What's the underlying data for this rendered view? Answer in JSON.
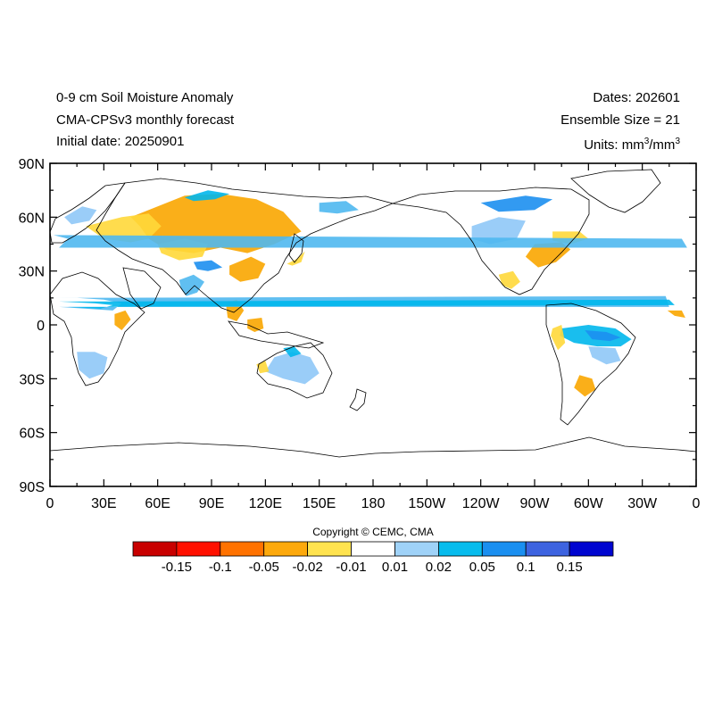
{
  "header": {
    "title_line1": "0-9 cm Soil Moisture Anomaly",
    "title_line2": "CMA-CPSv3 monthly forecast",
    "title_line3": "Initial date: 20250901",
    "dates": "Dates: 202601",
    "ensemble": "Ensemble Size = 21",
    "units_prefix": "Units: mm",
    "units_sup1": "3",
    "units_mid": "/mm",
    "units_sup2": "3"
  },
  "map": {
    "projection": "cylindrical-equidistant",
    "lon_range": [
      0,
      360
    ],
    "lat_range": [
      -90,
      90
    ],
    "lat_ticks": [
      {
        "value": 90,
        "label": "90N"
      },
      {
        "value": 60,
        "label": "60N"
      },
      {
        "value": 30,
        "label": "30N"
      },
      {
        "value": 0,
        "label": "0"
      },
      {
        "value": -30,
        "label": "30S"
      },
      {
        "value": -60,
        "label": "60S"
      },
      {
        "value": -90,
        "label": "90S"
      }
    ],
    "lon_ticks": [
      {
        "value": 0,
        "label": "0"
      },
      {
        "value": 30,
        "label": "30E"
      },
      {
        "value": 60,
        "label": "60E"
      },
      {
        "value": 90,
        "label": "90E"
      },
      {
        "value": 120,
        "label": "120E"
      },
      {
        "value": 150,
        "label": "150E"
      },
      {
        "value": 180,
        "label": "180"
      },
      {
        "value": 210,
        "label": "150W"
      },
      {
        "value": 240,
        "label": "120W"
      },
      {
        "value": 270,
        "label": "90W"
      },
      {
        "value": 300,
        "label": "60W"
      },
      {
        "value": 330,
        "label": "30W"
      },
      {
        "value": 360,
        "label": "0"
      }
    ],
    "coast_color": "#000000",
    "anomaly_regions": [
      {
        "name": "eurasia-dry",
        "color": "#f9a600",
        "lonlat": [
          [
            60,
            66
          ],
          [
            75,
            72
          ],
          [
            95,
            73
          ],
          [
            115,
            70
          ],
          [
            130,
            63
          ],
          [
            140,
            52
          ],
          [
            125,
            45
          ],
          [
            110,
            40
          ],
          [
            95,
            43
          ],
          [
            80,
            40
          ],
          [
            65,
            42
          ],
          [
            55,
            48
          ],
          [
            50,
            55
          ],
          [
            45,
            60
          ]
        ]
      },
      {
        "name": "eurasia-light-dry",
        "color": "#ffd83a",
        "lonlat": [
          [
            20,
            55
          ],
          [
            40,
            60
          ],
          [
            55,
            62
          ],
          [
            62,
            55
          ],
          [
            55,
            48
          ],
          [
            45,
            46
          ],
          [
            30,
            48
          ]
        ]
      },
      {
        "name": "central-asia-dry",
        "color": "#ffd83a",
        "lonlat": [
          [
            60,
            45
          ],
          [
            75,
            48
          ],
          [
            88,
            45
          ],
          [
            85,
            38
          ],
          [
            72,
            36
          ],
          [
            62,
            40
          ]
        ]
      },
      {
        "name": "china-dry",
        "color": "#f9a600",
        "lonlat": [
          [
            100,
            33
          ],
          [
            112,
            38
          ],
          [
            120,
            34
          ],
          [
            116,
            26
          ],
          [
            106,
            24
          ],
          [
            100,
            28
          ]
        ]
      },
      {
        "name": "india-wet",
        "color": "#4fb8f0",
        "lonlat": [
          [
            72,
            25
          ],
          [
            80,
            28
          ],
          [
            86,
            24
          ],
          [
            82,
            18
          ],
          [
            76,
            16
          ],
          [
            73,
            20
          ]
        ]
      },
      {
        "name": "tibet-wet",
        "color": "#1c8ff0",
        "lonlat": [
          [
            80,
            35
          ],
          [
            90,
            36
          ],
          [
            96,
            32
          ],
          [
            88,
            30
          ],
          [
            82,
            31
          ]
        ]
      },
      {
        "name": "se-asia-dry",
        "color": "#f9a600",
        "lonlat": [
          [
            98,
            12
          ],
          [
            104,
            14
          ],
          [
            108,
            8
          ],
          [
            104,
            2
          ],
          [
            99,
            4
          ]
        ]
      },
      {
        "name": "indonesia-dry",
        "color": "#f9a600",
        "lonlat": [
          [
            110,
            3
          ],
          [
            118,
            4
          ],
          [
            119,
            -2
          ],
          [
            114,
            -4
          ],
          [
            110,
            -2
          ]
        ]
      },
      {
        "name": "japan-dry",
        "color": "#ffd83a",
        "lonlat": [
          [
            132,
            34
          ],
          [
            138,
            37
          ],
          [
            142,
            41
          ],
          [
            140,
            35
          ],
          [
            135,
            33
          ]
        ]
      },
      {
        "name": "siberia-wet",
        "color": "#00b7ec",
        "lonlat": [
          [
            75,
            71
          ],
          [
            88,
            75
          ],
          [
            100,
            73
          ],
          [
            92,
            70
          ],
          [
            80,
            69
          ]
        ]
      },
      {
        "name": "east-siberia-wet",
        "color": "#4fb8f0",
        "lonlat": [
          [
            150,
            68
          ],
          [
            165,
            69
          ],
          [
            172,
            64
          ],
          [
            160,
            62
          ],
          [
            150,
            63
          ]
        ]
      },
      {
        "name": "sahel-wet",
        "color": "#4fb8f0",
        "lonlat": [
          [
            -17,
            16
          ],
          [
            0,
            15
          ],
          [
            15,
            15
          ],
          [
            30,
            14
          ],
          [
            40,
            12
          ],
          [
            35,
            8
          ],
          [
            20,
            9
          ],
          [
            5,
            10
          ],
          [
            -15,
            10
          ]
        ]
      },
      {
        "name": "sahel-strong-wet",
        "color": "#00b7ec",
        "lonlat": [
          [
            -15,
            14
          ],
          [
            5,
            13
          ],
          [
            25,
            12
          ],
          [
            35,
            11
          ],
          [
            28,
            9
          ],
          [
            10,
            10
          ],
          [
            -12,
            11
          ]
        ]
      },
      {
        "name": "east-africa-dry",
        "color": "#f9a600",
        "lonlat": [
          [
            36,
            6
          ],
          [
            42,
            8
          ],
          [
            45,
            3
          ],
          [
            40,
            -3
          ],
          [
            36,
            0
          ]
        ]
      },
      {
        "name": "southern-africa-wet",
        "color": "#8fc8f7",
        "lonlat": [
          [
            15,
            -15
          ],
          [
            25,
            -15
          ],
          [
            32,
            -18
          ],
          [
            30,
            -27
          ],
          [
            22,
            -30
          ],
          [
            16,
            -25
          ]
        ]
      },
      {
        "name": "australia-wet",
        "color": "#8fc8f7",
        "lonlat": [
          [
            125,
            -18
          ],
          [
            135,
            -15
          ],
          [
            145,
            -18
          ],
          [
            150,
            -27
          ],
          [
            142,
            -33
          ],
          [
            130,
            -30
          ],
          [
            120,
            -26
          ]
        ]
      },
      {
        "name": "australia-north-wet",
        "color": "#00b7ec",
        "lonlat": [
          [
            130,
            -13
          ],
          [
            136,
            -12
          ],
          [
            140,
            -16
          ],
          [
            134,
            -18
          ]
        ]
      },
      {
        "name": "australia-west-dry",
        "color": "#ffd83a",
        "lonlat": [
          [
            115,
            -22
          ],
          [
            120,
            -20
          ],
          [
            122,
            -26
          ],
          [
            117,
            -27
          ]
        ]
      },
      {
        "name": "north-america-wet",
        "color": "#8fc8f7",
        "lonlat": [
          [
            -125,
            55
          ],
          [
            -110,
            60
          ],
          [
            -95,
            58
          ],
          [
            -100,
            48
          ],
          [
            -115,
            45
          ],
          [
            -125,
            48
          ]
        ]
      },
      {
        "name": "east-us-dry",
        "color": "#f9a600",
        "lonlat": [
          [
            -90,
            45
          ],
          [
            -75,
            46
          ],
          [
            -70,
            42
          ],
          [
            -78,
            35
          ],
          [
            -88,
            32
          ],
          [
            -95,
            38
          ]
        ]
      },
      {
        "name": "east-canada-dry",
        "color": "#ffd83a",
        "lonlat": [
          [
            -80,
            52
          ],
          [
            -65,
            52
          ],
          [
            -60,
            48
          ],
          [
            -70,
            45
          ],
          [
            -80,
            47
          ]
        ]
      },
      {
        "name": "arctic-canada-wet",
        "color": "#1c8ff0",
        "lonlat": [
          [
            -120,
            68
          ],
          [
            -95,
            72
          ],
          [
            -80,
            70
          ],
          [
            -90,
            64
          ],
          [
            -110,
            63
          ]
        ]
      },
      {
        "name": "mexico-dry",
        "color": "#ffd83a",
        "lonlat": [
          [
            -110,
            28
          ],
          [
            -102,
            30
          ],
          [
            -98,
            24
          ],
          [
            -103,
            20
          ],
          [
            -108,
            22
          ]
        ]
      },
      {
        "name": "amazon-wet",
        "color": "#00b7ec",
        "lonlat": [
          [
            -75,
            -2
          ],
          [
            -60,
            0
          ],
          [
            -45,
            -2
          ],
          [
            -36,
            -8
          ],
          [
            -42,
            -12
          ],
          [
            -55,
            -12
          ],
          [
            -68,
            -10
          ],
          [
            -76,
            -6
          ]
        ]
      },
      {
        "name": "amazon-strong-wet",
        "color": "#1c8ff0",
        "lonlat": [
          [
            -62,
            -3
          ],
          [
            -50,
            -4
          ],
          [
            -42,
            -7
          ],
          [
            -48,
            -9
          ],
          [
            -58,
            -8
          ]
        ]
      },
      {
        "name": "brazil-light-wet",
        "color": "#8fc8f7",
        "lonlat": [
          [
            -60,
            -12
          ],
          [
            -45,
            -13
          ],
          [
            -42,
            -20
          ],
          [
            -50,
            -22
          ],
          [
            -58,
            -18
          ]
        ]
      },
      {
        "name": "argentina-dry",
        "color": "#f9a600",
        "lonlat": [
          [
            -65,
            -28
          ],
          [
            -58,
            -30
          ],
          [
            -56,
            -36
          ],
          [
            -62,
            -40
          ],
          [
            -68,
            -35
          ]
        ]
      },
      {
        "name": "andes-dry",
        "color": "#ffd83a",
        "lonlat": [
          [
            -80,
            -2
          ],
          [
            -75,
            0
          ],
          [
            -73,
            -10
          ],
          [
            -77,
            -14
          ],
          [
            -81,
            -6
          ]
        ]
      },
      {
        "name": "west-africa-dry",
        "color": "#f9a600",
        "lonlat": [
          [
            -16,
            8
          ],
          [
            -8,
            8
          ],
          [
            -6,
            4
          ],
          [
            -12,
            5
          ]
        ]
      },
      {
        "name": "europe-wet",
        "color": "#4fb8f0",
        "lonlat": [
          [
            -8,
            48
          ],
          [
            2,
            50
          ],
          [
            10,
            48
          ],
          [
            5,
            43
          ],
          [
            -5,
            43
          ]
        ]
      },
      {
        "name": "scandinavia-wet",
        "color": "#8fc8f7",
        "lonlat": [
          [
            8,
            60
          ],
          [
            18,
            66
          ],
          [
            26,
            64
          ],
          [
            22,
            58
          ],
          [
            12,
            56
          ]
        ]
      }
    ]
  },
  "colorbar": {
    "colors": [
      "#c80000",
      "#ff1000",
      "#ff7200",
      "#fda90c",
      "#ffe34f",
      "#ffffff",
      "#9fd2f8",
      "#07bced",
      "#1a8ff0",
      "#3d63e0",
      "#0005d0"
    ],
    "labels": [
      "-0.15",
      "-0.1",
      "-0.05",
      "-0.02",
      "-0.01",
      "0.01",
      "0.02",
      "0.05",
      "0.1",
      "0.15"
    ]
  },
  "copyright": "Copyright © CEMC, CMA"
}
